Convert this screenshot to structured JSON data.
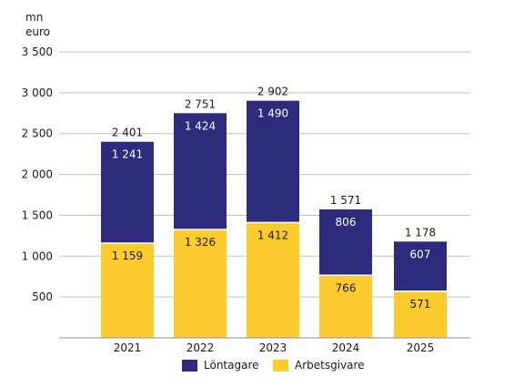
{
  "unit_label": {
    "line1": "mn",
    "line2": "euro"
  },
  "colors": {
    "lontagare": "#2e2a7c",
    "arbetsgivare": "#fccc2e",
    "grid": "#bfbfbf",
    "axis": "#8c8c8c"
  },
  "legend": [
    {
      "label": "Löntagare",
      "color": "#2e2a7c"
    },
    {
      "label": "Arbetsgivare",
      "color": "#fccc2e"
    }
  ],
  "chart_data": {
    "type": "bar",
    "stacked": true,
    "categories": [
      "2021",
      "2022",
      "2023",
      "2024",
      "2025"
    ],
    "series": [
      {
        "name": "Arbetsgivare",
        "values": [
          1159,
          1326,
          1412,
          766,
          571
        ],
        "labels": [
          "1 159",
          "1 326",
          "1 412",
          "766",
          "571"
        ]
      },
      {
        "name": "Löntagare",
        "values": [
          1241,
          1424,
          1490,
          806,
          607
        ],
        "labels": [
          "1 241",
          "1 424",
          "1 490",
          "806",
          "607"
        ]
      }
    ],
    "totals": [
      2401,
      2751,
      2902,
      1571,
      1178
    ],
    "total_labels": [
      "2 401",
      "2 751",
      "2 902",
      "1 571",
      "1 178"
    ],
    "ylim": [
      0,
      3500
    ],
    "yticks": [
      500,
      1000,
      1500,
      2000,
      2500,
      3000,
      3500
    ],
    "ytick_labels": [
      "500",
      "1 000",
      "1 500",
      "2 000",
      "2 500",
      "3 000",
      "3 500"
    ],
    "grid": true,
    "legend_position": "bottom",
    "title": "",
    "xlabel": "",
    "ylabel": "mn euro"
  }
}
